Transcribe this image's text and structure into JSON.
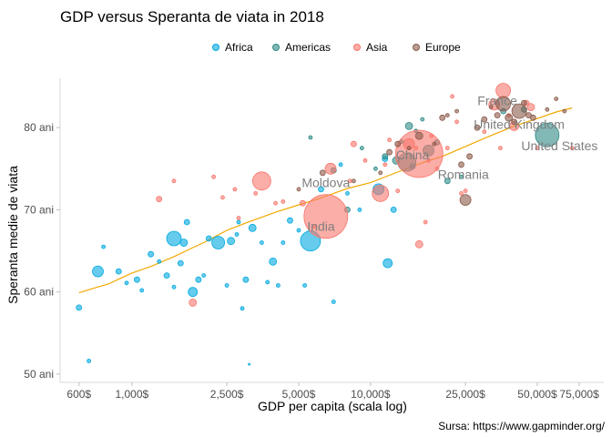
{
  "chart_data": {
    "type": "scatter",
    "title": "GDP versus Speranta de  viata in 2018",
    "xlabel": "GDP per capita (scala log)",
    "ylabel": "Speranta medie de viata",
    "caption": "Sursa: https://www.gapminder.org/",
    "x_scale": "log",
    "xlim": [
      500,
      95000
    ],
    "ylim": [
      49,
      86
    ],
    "x_ticks": [
      {
        "value": 600,
        "label": "600$"
      },
      {
        "value": 1000,
        "label": "1,000$"
      },
      {
        "value": 2500,
        "label": "2,500$"
      },
      {
        "value": 5000,
        "label": "5,000$"
      },
      {
        "value": 10000,
        "label": "10,000$"
      },
      {
        "value": 25000,
        "label": "25,000$"
      },
      {
        "value": 50000,
        "label": "50,000$"
      },
      {
        "value": 75000,
        "label": "75,000$"
      }
    ],
    "y_ticks": [
      {
        "value": 50,
        "label": "50 ani"
      },
      {
        "value": 60,
        "label": "60 ani"
      },
      {
        "value": 70,
        "label": "70 ani"
      },
      {
        "value": 80,
        "label": "80 ani"
      }
    ],
    "grid": false,
    "legend_position": "top",
    "colors": {
      "Africa": "#00A9E0",
      "Americas": "#2E8B87",
      "Asia": "#F8766D",
      "Europe": "#8B5A4A",
      "trend": "#F2A800"
    },
    "series": [
      {
        "name": "Africa",
        "points": [
          [
            600,
            58.1
          ],
          [
            660,
            51.6
          ],
          [
            720,
            62.5
          ],
          [
            760,
            65.5
          ],
          [
            880,
            62.5
          ],
          [
            950,
            61.1
          ],
          [
            1050,
            61.5
          ],
          [
            1100,
            60.2
          ],
          [
            1200,
            64.6
          ],
          [
            1300,
            63.7
          ],
          [
            1400,
            62
          ],
          [
            1500,
            66.5
          ],
          [
            1500,
            60.6
          ],
          [
            1600,
            63.5
          ],
          [
            1650,
            66
          ],
          [
            1700,
            68.5
          ],
          [
            1800,
            60
          ],
          [
            1900,
            61.5
          ],
          [
            2000,
            62
          ],
          [
            2100,
            66.5
          ],
          [
            2300,
            66
          ],
          [
            2500,
            60.8
          ],
          [
            2600,
            66.2
          ],
          [
            2750,
            67
          ],
          [
            2800,
            68.5
          ],
          [
            2900,
            58
          ],
          [
            3000,
            61.5
          ],
          [
            3100,
            51.2
          ],
          [
            3200,
            67.8
          ],
          [
            3500,
            66
          ],
          [
            3700,
            61.2
          ],
          [
            3900,
            63.7
          ],
          [
            4100,
            60.8
          ],
          [
            4300,
            66
          ],
          [
            4600,
            68.7
          ],
          [
            5000,
            67.5
          ],
          [
            5300,
            60.8
          ],
          [
            5600,
            66.2
          ],
          [
            6200,
            72.5
          ],
          [
            7000,
            58.8
          ],
          [
            7500,
            75.5
          ],
          [
            8000,
            72
          ],
          [
            9000,
            70
          ],
          [
            10800,
            72.5
          ],
          [
            11500,
            76.2
          ],
          [
            11800,
            63.5
          ],
          [
            12500,
            70
          ],
          [
            15000,
            75.3
          ]
        ],
        "sizes": [
          3,
          2,
          6,
          2,
          3,
          2,
          3,
          2,
          3,
          2,
          3,
          8,
          2,
          3,
          4,
          3,
          5,
          3,
          2,
          3,
          7,
          2,
          4,
          2,
          2,
          2,
          3,
          1,
          4,
          2,
          2,
          4,
          2,
          2,
          3,
          2,
          2,
          11,
          3,
          2,
          2,
          2,
          2,
          6,
          3,
          5,
          3,
          3
        ]
      },
      {
        "name": "Americas",
        "points": [
          [
            5600,
            78.8
          ],
          [
            7000,
            74.8
          ],
          [
            8000,
            70
          ],
          [
            9200,
            77.5
          ],
          [
            10500,
            75
          ],
          [
            11500,
            76.5
          ],
          [
            12800,
            76
          ],
          [
            13500,
            78.3
          ],
          [
            14200,
            75.8
          ],
          [
            14500,
            80.2
          ],
          [
            15500,
            79.6
          ],
          [
            16500,
            81
          ],
          [
            17500,
            77.2
          ],
          [
            19000,
            78.2
          ],
          [
            21000,
            73.5
          ],
          [
            24000,
            74
          ],
          [
            36000,
            82
          ],
          [
            44000,
            82.2
          ],
          [
            55000,
            79.1
          ]
        ],
        "sizes": [
          2,
          3,
          3,
          2,
          2,
          3,
          4,
          2,
          10,
          4,
          2,
          2,
          6,
          3,
          3,
          2,
          3,
          3,
          13
        ]
      },
      {
        "name": "Asia",
        "points": [
          [
            1300,
            71.3
          ],
          [
            1500,
            73.5
          ],
          [
            1800,
            58.7
          ],
          [
            2200,
            74
          ],
          [
            2400,
            71.5
          ],
          [
            2700,
            72.5
          ],
          [
            2800,
            69
          ],
          [
            3300,
            72
          ],
          [
            3500,
            73.5
          ],
          [
            4000,
            70.8
          ],
          [
            4300,
            71
          ],
          [
            5200,
            70.8
          ],
          [
            5800,
            68
          ],
          [
            6500,
            69.2
          ],
          [
            6800,
            75
          ],
          [
            8200,
            73.5
          ],
          [
            8500,
            78
          ],
          [
            9500,
            76
          ],
          [
            11000,
            72
          ],
          [
            11500,
            75.5
          ],
          [
            12000,
            78.5
          ],
          [
            13000,
            72.3
          ],
          [
            14500,
            78
          ],
          [
            15500,
            77.5
          ],
          [
            16000,
            76.8
          ],
          [
            16000,
            65.8
          ],
          [
            17000,
            68.5
          ],
          [
            17500,
            76
          ],
          [
            18000,
            79
          ],
          [
            19000,
            75
          ],
          [
            21000,
            77.5
          ],
          [
            22000,
            83.8
          ],
          [
            23000,
            80.7
          ],
          [
            24000,
            72
          ],
          [
            25000,
            72.3
          ],
          [
            30000,
            79.5
          ],
          [
            33000,
            82.8
          ],
          [
            35000,
            77.5
          ],
          [
            36000,
            84.5
          ],
          [
            38000,
            81.5
          ],
          [
            40000,
            80.2
          ],
          [
            45000,
            83
          ],
          [
            47000,
            82.5
          ],
          [
            50000,
            77.5
          ],
          [
            70000,
            77.5
          ]
        ],
        "sizes": [
          3,
          2,
          4,
          2,
          2,
          2,
          2,
          2,
          10,
          2,
          2,
          3,
          2,
          24,
          6,
          2,
          3,
          2,
          9,
          2,
          2,
          2,
          6,
          2,
          26,
          4,
          2,
          2,
          2,
          2,
          2,
          2,
          2,
          2,
          2,
          2,
          6,
          2,
          8,
          2,
          5,
          3,
          4,
          2,
          2
        ]
      },
      {
        "name": "Europe",
        "points": [
          [
            5000,
            72.5
          ],
          [
            6300,
            74.5
          ],
          [
            8500,
            73.5
          ],
          [
            11000,
            74.5
          ],
          [
            12000,
            77
          ],
          [
            13000,
            78
          ],
          [
            14500,
            77.5
          ],
          [
            16000,
            79
          ],
          [
            18500,
            78
          ],
          [
            20000,
            81.2
          ],
          [
            21000,
            81.5
          ],
          [
            23000,
            82
          ],
          [
            24000,
            75.5
          ],
          [
            25000,
            71.2
          ],
          [
            26000,
            76.5
          ],
          [
            28000,
            80
          ],
          [
            30000,
            81
          ],
          [
            32000,
            82.5
          ],
          [
            34000,
            81.5
          ],
          [
            36000,
            82.9
          ],
          [
            38000,
            81.2
          ],
          [
            40000,
            80.7
          ],
          [
            42000,
            82
          ],
          [
            44000,
            83
          ],
          [
            46000,
            81.5
          ],
          [
            48000,
            81.2
          ],
          [
            55000,
            82.2
          ],
          [
            60000,
            83.5
          ],
          [
            65000,
            82
          ]
        ],
        "sizes": [
          2,
          3,
          2,
          2,
          3,
          3,
          2,
          4,
          2,
          3,
          2,
          2,
          3,
          6,
          3,
          3,
          3,
          2,
          3,
          8,
          4,
          3,
          8,
          3,
          3,
          3,
          2,
          2,
          2
        ]
      }
    ],
    "trend_line": {
      "x": [
        600,
        700,
        800,
        1000,
        1200,
        1500,
        1800,
        2000,
        2500,
        3000,
        3500,
        4000,
        5000,
        6000,
        7000,
        8000,
        10000,
        12000,
        15000,
        18000,
        20000,
        25000,
        30000,
        35000,
        40000,
        50000,
        60000,
        70000
      ],
      "y": [
        59.9,
        60.5,
        61,
        62.3,
        63.1,
        64.3,
        65.4,
        66,
        67.5,
        68.4,
        69.1,
        69.7,
        70.6,
        71.3,
        72,
        72.6,
        73.3,
        74.2,
        75.3,
        76.1,
        76.5,
        77.7,
        78.7,
        79.5,
        80.2,
        81.1,
        81.9,
        82.4
      ]
    },
    "annotations": [
      {
        "label": "France",
        "x": 34000,
        "y": 83.3
      },
      {
        "label": "United Kingdom",
        "x": 42000,
        "y": 80.4
      },
      {
        "label": "China",
        "x": 15000,
        "y": 76.7
      },
      {
        "label": "United States",
        "x": 62000,
        "y": 77.8
      },
      {
        "label": "Moldova",
        "x": 6500,
        "y": 73.3
      },
      {
        "label": "Romania",
        "x": 24500,
        "y": 74.3
      },
      {
        "label": "India",
        "x": 6200,
        "y": 68
      }
    ]
  }
}
